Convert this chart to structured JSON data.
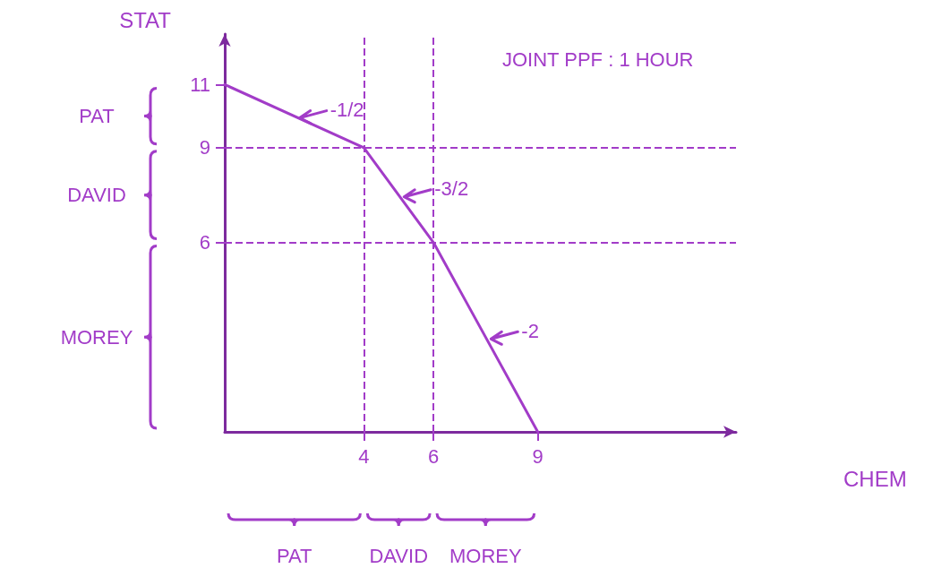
{
  "chart_data": {
    "type": "line",
    "title": "JOINT PPF : 1 HOUR",
    "xlabel": "CHEM",
    "ylabel": "STAT",
    "x": [
      0,
      4,
      6,
      9
    ],
    "series": [
      {
        "color": "#a23cc8",
        "values": [
          11,
          9,
          6,
          0
        ]
      }
    ],
    "xlim": [
      0,
      14.7
    ],
    "ylim": [
      0,
      12.6
    ],
    "xticks": [
      4,
      6,
      9
    ],
    "yticks": [
      6,
      9,
      11
    ],
    "grid": false,
    "marker": "none",
    "line_style": "solid",
    "ref_lines": [
      {
        "axis": "y",
        "value": 9,
        "color": "#a23cc8",
        "line_style": "dashed"
      },
      {
        "axis": "y",
        "value": 6,
        "color": "#a23cc8",
        "line_style": "dashed"
      },
      {
        "axis": "x",
        "value": 4,
        "color": "#a23cc8",
        "line_style": "dashed"
      },
      {
        "axis": "x",
        "value": 6,
        "color": "#a23cc8",
        "line_style": "dashed"
      }
    ],
    "annotations": [
      {
        "text": "-1/2",
        "x": 2,
        "y": 10
      },
      {
        "text": "-3/2",
        "x": 5,
        "y": 7.5
      },
      {
        "text": "-2",
        "x": 7.5,
        "y": 3
      },
      "PAT",
      "DAVID",
      "MOREY",
      "PAT",
      "DAVID",
      "MOREY"
    ]
  }
}
